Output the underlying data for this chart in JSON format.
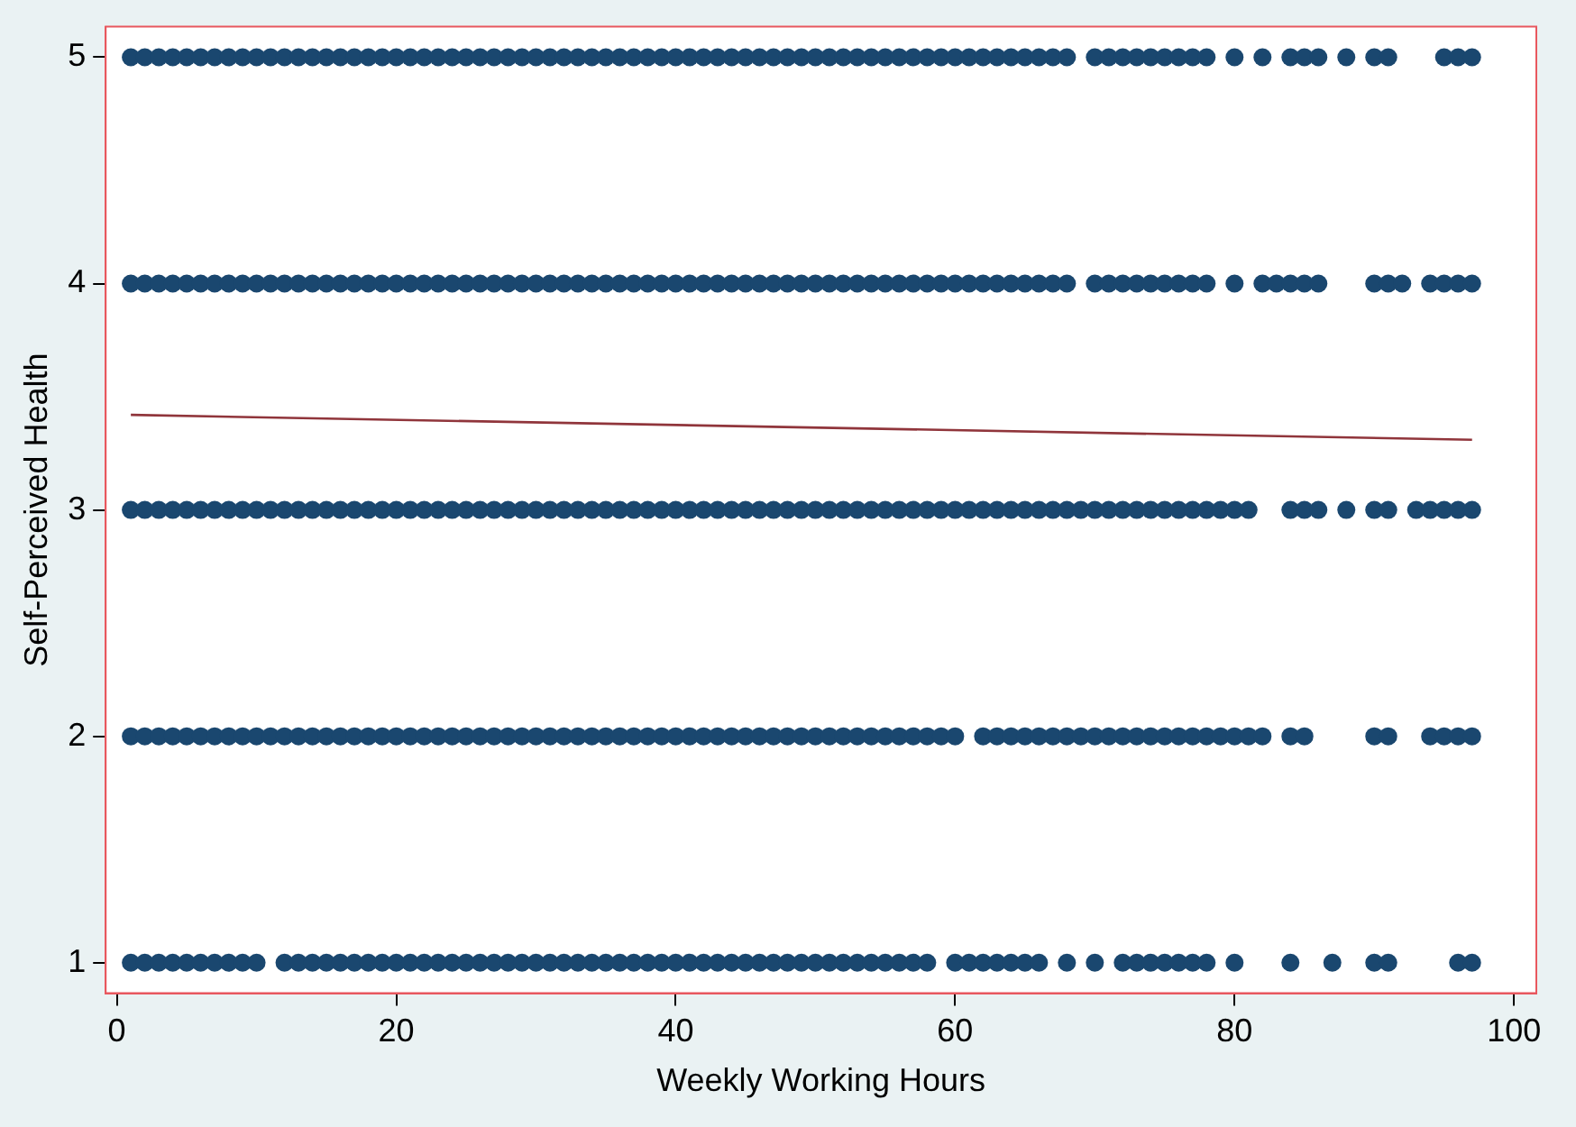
{
  "chart_data": {
    "type": "scatter",
    "xlabel": "Weekly Working Hours",
    "ylabel": "Self-Perceived Health",
    "xlim": [
      -0.8,
      101.6
    ],
    "xticks": [
      0,
      20,
      40,
      60,
      80,
      100
    ],
    "ylim": [
      0.865,
      5.135
    ],
    "yticks": [
      1,
      2,
      3,
      4,
      5
    ],
    "grid": false,
    "legend": false,
    "marker": "circle",
    "series": [
      {
        "color": "#1a476f",
        "x": [
          1,
          2,
          3,
          4,
          5,
          6,
          7,
          8,
          9,
          10,
          11,
          12,
          13,
          14,
          15,
          16,
          17,
          18,
          19,
          20,
          21,
          22,
          23,
          24,
          25,
          26,
          27,
          28,
          29,
          30,
          31,
          32,
          33,
          34,
          35,
          36,
          37,
          38,
          39,
          40,
          41,
          42,
          43,
          44,
          45,
          46,
          47,
          48,
          49,
          50,
          51,
          52,
          53,
          54,
          55,
          56,
          57,
          58,
          59,
          60,
          61,
          62,
          63,
          64,
          65,
          66,
          67,
          68,
          70,
          71,
          72,
          73,
          74,
          75,
          76,
          77,
          78,
          80,
          82,
          84,
          85,
          86,
          88,
          90,
          91,
          95,
          96,
          97
        ],
        "values": [
          5,
          5,
          5,
          5,
          5,
          5,
          5,
          5,
          5,
          5,
          5,
          5,
          5,
          5,
          5,
          5,
          5,
          5,
          5,
          5,
          5,
          5,
          5,
          5,
          5,
          5,
          5,
          5,
          5,
          5,
          5,
          5,
          5,
          5,
          5,
          5,
          5,
          5,
          5,
          5,
          5,
          5,
          5,
          5,
          5,
          5,
          5,
          5,
          5,
          5,
          5,
          5,
          5,
          5,
          5,
          5,
          5,
          5,
          5,
          5,
          5,
          5,
          5,
          5,
          5,
          5,
          5,
          5,
          5,
          5,
          5,
          5,
          5,
          5,
          5,
          5,
          5,
          5,
          5,
          5,
          5,
          5,
          5,
          5,
          5,
          5,
          5,
          5
        ]
      },
      {
        "color": "#1a476f",
        "x": [
          1,
          2,
          3,
          4,
          5,
          6,
          7,
          8,
          9,
          10,
          11,
          12,
          13,
          14,
          15,
          16,
          17,
          18,
          19,
          20,
          21,
          22,
          23,
          24,
          25,
          26,
          27,
          28,
          29,
          30,
          31,
          32,
          33,
          34,
          35,
          36,
          37,
          38,
          39,
          40,
          41,
          42,
          43,
          44,
          45,
          46,
          47,
          48,
          49,
          50,
          51,
          52,
          53,
          54,
          55,
          56,
          57,
          58,
          59,
          60,
          61,
          62,
          63,
          64,
          65,
          66,
          67,
          68,
          70,
          71,
          72,
          73,
          74,
          75,
          76,
          77,
          78,
          80,
          82,
          83,
          84,
          85,
          86,
          90,
          91,
          92,
          94,
          95,
          96,
          97
        ],
        "values": [
          4,
          4,
          4,
          4,
          4,
          4,
          4,
          4,
          4,
          4,
          4,
          4,
          4,
          4,
          4,
          4,
          4,
          4,
          4,
          4,
          4,
          4,
          4,
          4,
          4,
          4,
          4,
          4,
          4,
          4,
          4,
          4,
          4,
          4,
          4,
          4,
          4,
          4,
          4,
          4,
          4,
          4,
          4,
          4,
          4,
          4,
          4,
          4,
          4,
          4,
          4,
          4,
          4,
          4,
          4,
          4,
          4,
          4,
          4,
          4,
          4,
          4,
          4,
          4,
          4,
          4,
          4,
          4,
          4,
          4,
          4,
          4,
          4,
          4,
          4,
          4,
          4,
          4,
          4,
          4,
          4,
          4,
          4,
          4,
          4,
          4,
          4,
          4,
          4,
          4
        ]
      },
      {
        "color": "#1a476f",
        "x": [
          1,
          2,
          3,
          4,
          5,
          6,
          7,
          8,
          9,
          10,
          11,
          12,
          13,
          14,
          15,
          16,
          17,
          18,
          19,
          20,
          21,
          22,
          23,
          24,
          25,
          26,
          27,
          28,
          29,
          30,
          31,
          32,
          33,
          34,
          35,
          36,
          37,
          38,
          39,
          40,
          41,
          42,
          43,
          44,
          45,
          46,
          47,
          48,
          49,
          50,
          51,
          52,
          53,
          54,
          55,
          56,
          57,
          58,
          59,
          60,
          61,
          62,
          63,
          64,
          65,
          66,
          67,
          68,
          69,
          70,
          71,
          72,
          73,
          74,
          75,
          76,
          77,
          78,
          79,
          80,
          81,
          84,
          85,
          86,
          88,
          90,
          91,
          93,
          94,
          95,
          96,
          97
        ],
        "values": [
          3,
          3,
          3,
          3,
          3,
          3,
          3,
          3,
          3,
          3,
          3,
          3,
          3,
          3,
          3,
          3,
          3,
          3,
          3,
          3,
          3,
          3,
          3,
          3,
          3,
          3,
          3,
          3,
          3,
          3,
          3,
          3,
          3,
          3,
          3,
          3,
          3,
          3,
          3,
          3,
          3,
          3,
          3,
          3,
          3,
          3,
          3,
          3,
          3,
          3,
          3,
          3,
          3,
          3,
          3,
          3,
          3,
          3,
          3,
          3,
          3,
          3,
          3,
          3,
          3,
          3,
          3,
          3,
          3,
          3,
          3,
          3,
          3,
          3,
          3,
          3,
          3,
          3,
          3,
          3,
          3,
          3,
          3,
          3,
          3,
          3,
          3,
          3,
          3,
          3,
          3,
          3
        ]
      },
      {
        "color": "#1a476f",
        "x": [
          1,
          2,
          3,
          4,
          5,
          6,
          7,
          8,
          9,
          10,
          11,
          12,
          13,
          14,
          15,
          16,
          17,
          18,
          19,
          20,
          21,
          22,
          23,
          24,
          25,
          26,
          27,
          28,
          29,
          30,
          31,
          32,
          33,
          34,
          35,
          36,
          37,
          38,
          39,
          40,
          41,
          42,
          43,
          44,
          45,
          46,
          47,
          48,
          49,
          50,
          51,
          52,
          53,
          54,
          55,
          56,
          57,
          58,
          59,
          60,
          62,
          63,
          64,
          65,
          66,
          67,
          68,
          69,
          70,
          71,
          72,
          73,
          74,
          75,
          76,
          77,
          78,
          79,
          80,
          81,
          82,
          84,
          85,
          90,
          91,
          94,
          95,
          96,
          97
        ],
        "values": [
          2,
          2,
          2,
          2,
          2,
          2,
          2,
          2,
          2,
          2,
          2,
          2,
          2,
          2,
          2,
          2,
          2,
          2,
          2,
          2,
          2,
          2,
          2,
          2,
          2,
          2,
          2,
          2,
          2,
          2,
          2,
          2,
          2,
          2,
          2,
          2,
          2,
          2,
          2,
          2,
          2,
          2,
          2,
          2,
          2,
          2,
          2,
          2,
          2,
          2,
          2,
          2,
          2,
          2,
          2,
          2,
          2,
          2,
          2,
          2,
          2,
          2,
          2,
          2,
          2,
          2,
          2,
          2,
          2,
          2,
          2,
          2,
          2,
          2,
          2,
          2,
          2,
          2,
          2,
          2,
          2,
          2,
          2,
          2,
          2,
          2,
          2,
          2,
          2
        ]
      },
      {
        "color": "#1a476f",
        "x": [
          1,
          2,
          3,
          4,
          5,
          6,
          7,
          8,
          9,
          10,
          12,
          13,
          14,
          15,
          16,
          17,
          18,
          19,
          20,
          21,
          22,
          23,
          24,
          25,
          26,
          27,
          28,
          29,
          30,
          31,
          32,
          33,
          34,
          35,
          36,
          37,
          38,
          39,
          40,
          41,
          42,
          43,
          44,
          45,
          46,
          47,
          48,
          49,
          50,
          51,
          52,
          53,
          54,
          55,
          56,
          57,
          58,
          60,
          61,
          62,
          63,
          64,
          65,
          66,
          68,
          70,
          72,
          73,
          74,
          75,
          76,
          77,
          78,
          80,
          84,
          87,
          90,
          91,
          96,
          97
        ],
        "values": [
          1,
          1,
          1,
          1,
          1,
          1,
          1,
          1,
          1,
          1,
          1,
          1,
          1,
          1,
          1,
          1,
          1,
          1,
          1,
          1,
          1,
          1,
          1,
          1,
          1,
          1,
          1,
          1,
          1,
          1,
          1,
          1,
          1,
          1,
          1,
          1,
          1,
          1,
          1,
          1,
          1,
          1,
          1,
          1,
          1,
          1,
          1,
          1,
          1,
          1,
          1,
          1,
          1,
          1,
          1,
          1,
          1,
          1,
          1,
          1,
          1,
          1,
          1,
          1,
          1,
          1,
          1,
          1,
          1,
          1,
          1,
          1,
          1,
          1,
          1,
          1,
          1,
          1,
          1,
          1
        ]
      },
      {
        "type": "line",
        "color": "#90353b",
        "marker": "none",
        "x": [
          1,
          97
        ],
        "values": [
          3.42,
          3.31
        ]
      }
    ]
  }
}
